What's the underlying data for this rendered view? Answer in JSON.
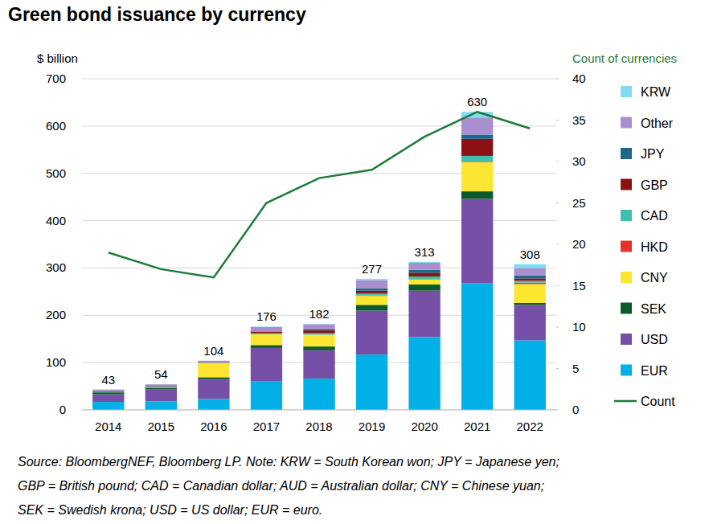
{
  "chart_data": {
    "type": "bar",
    "title": "Green bond issuance by currency",
    "y_label": "$ billion",
    "y2_label": "Count of currencies",
    "notes": [
      "Source: BloombergNEF, Bloomberg LP. Note: KRW = South Korean won; JPY = Japanese yen;",
      "GBP = British pound; CAD = Canadian dollar; AUD = Australian dollar; CNY = Chinese yuan;",
      "SEK = Swedish krona; USD = US dollar; EUR = euro."
    ],
    "stacked": true,
    "grid": true,
    "legend": "right",
    "categories": [
      "2014",
      "2015",
      "2016",
      "2017",
      "2018",
      "2019",
      "2020",
      "2021",
      "2022"
    ],
    "totals": [
      43,
      54,
      104,
      176,
      182,
      277,
      313,
      630,
      308
    ],
    "ylim": [
      0,
      700
    ],
    "yticks": [
      0,
      100,
      200,
      300,
      400,
      500,
      600,
      700
    ],
    "y2lim": [
      0,
      40
    ],
    "y2ticks": [
      0,
      5,
      10,
      15,
      20,
      25,
      30,
      35,
      40
    ],
    "series": [
      {
        "name": "EUR",
        "color": "#00b0e6",
        "values": [
          17,
          18,
          23,
          61,
          66,
          117,
          154,
          268,
          147
        ]
      },
      {
        "name": "USD",
        "color": "#7650a6",
        "values": [
          16,
          26,
          42,
          70,
          60,
          93,
          98,
          178,
          75
        ]
      },
      {
        "name": "SEK",
        "color": "#0b5a2b",
        "values": [
          4,
          3,
          4,
          6,
          8,
          12,
          13,
          16,
          4
        ]
      },
      {
        "name": "CNY",
        "color": "#fce632",
        "values": [
          0,
          1,
          30,
          23,
          25,
          19,
          11,
          62,
          40
        ]
      },
      {
        "name": "HKD",
        "color": "#e8302a",
        "values": [
          0,
          0,
          0,
          0,
          0,
          1,
          1,
          1,
          3
        ]
      },
      {
        "name": "CAD",
        "color": "#3fbfae",
        "values": [
          1,
          1,
          1,
          2,
          3,
          4,
          5,
          12,
          4
        ]
      },
      {
        "name": "GBP",
        "color": "#8a1212",
        "values": [
          1,
          1,
          1,
          3,
          6,
          6,
          8,
          36,
          5
        ]
      },
      {
        "name": "JPY",
        "color": "#1d6a88",
        "values": [
          1,
          1,
          0,
          1,
          3,
          5,
          6,
          9,
          6
        ]
      },
      {
        "name": "Other",
        "color": "#a98fd0",
        "values": [
          3,
          3,
          3,
          9,
          10,
          17,
          15,
          36,
          16
        ]
      },
      {
        "name": "KRW",
        "color": "#80dcf5",
        "values": [
          0,
          0,
          0,
          1,
          1,
          3,
          2,
          12,
          8
        ]
      },
      {
        "name": "Count",
        "type": "line",
        "axis": "y2",
        "color": "#1f7a3a",
        "values": [
          19,
          17,
          16,
          25,
          28,
          29,
          33,
          36,
          34
        ]
      }
    ]
  }
}
